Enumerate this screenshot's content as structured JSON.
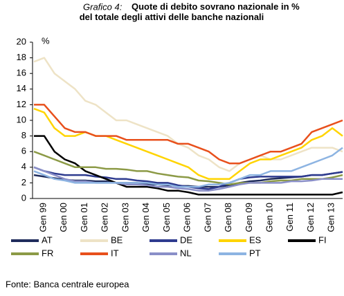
{
  "chart_data": {
    "type": "line",
    "title_label": "Grafico 4:",
    "title": "Quote di debito sovrano nazionale in %  del totale degli attivi delle banche nazionali",
    "ylabel": "%",
    "source": "Fonte: Banca centrale europea",
    "categories": [
      "Gen 99",
      null,
      "Gen 00",
      null,
      "Gen 01",
      null,
      "Gen 02",
      null,
      "Gen 03",
      null,
      "Gen 04",
      null,
      "Gen 05",
      null,
      "Gen 06",
      null,
      "Gen 07",
      null,
      "Gen 08",
      null,
      "Gen 09",
      null,
      "Gen 10",
      null,
      "Gen 11",
      null,
      "Gen 12",
      null,
      "Gen 13",
      null,
      null
    ],
    "ylim": [
      0,
      20
    ],
    "yticks": [
      0,
      2,
      4,
      6,
      8,
      10,
      12,
      14,
      16,
      18,
      20
    ],
    "grid": false,
    "series": [
      {
        "name": "AT",
        "color": "#1f2c5c",
        "values": [
          3,
          2.8,
          2.6,
          2.4,
          2.3,
          2.3,
          2.2,
          2.2,
          2,
          2,
          2,
          1.8,
          1.8,
          1.7,
          1.6,
          1.6,
          1.5,
          1.5,
          1.5,
          1.7,
          2,
          2.2,
          2.3,
          2.5,
          2.6,
          2.7,
          2.8,
          3,
          3,
          3.2,
          3.4
        ]
      },
      {
        "name": "BE",
        "color": "#eee3c6",
        "values": [
          17.5,
          18,
          16,
          15,
          14,
          12.5,
          12,
          11,
          10,
          10,
          9.5,
          9,
          8.5,
          8,
          7,
          6.5,
          5.5,
          5,
          4,
          3.5,
          4.5,
          5,
          5.5,
          5,
          5,
          5.5,
          6,
          6.5,
          6.5,
          6.5,
          6
        ]
      },
      {
        "name": "DE",
        "color": "#2e3b8f",
        "values": [
          4,
          3.5,
          3.2,
          3,
          3,
          3,
          2.8,
          2.7,
          2.5,
          2.5,
          2.3,
          2.2,
          2,
          2,
          1.7,
          1.5,
          1.3,
          1.2,
          1.5,
          2,
          2.5,
          2.7,
          2.8,
          2.8,
          2.8,
          2.8,
          2.8,
          3,
          3,
          3.2,
          3.4
        ]
      },
      {
        "name": "ES",
        "color": "#ffd400",
        "values": [
          11.5,
          11,
          9,
          8,
          8,
          8.5,
          8,
          8,
          7.5,
          7,
          6.5,
          6,
          5.5,
          5,
          4.5,
          4,
          3,
          2.5,
          2.5,
          2.5,
          3.5,
          4.5,
          5,
          5,
          5.5,
          6,
          6.5,
          7.5,
          8,
          9,
          8
        ]
      },
      {
        "name": "FI",
        "color": "#000000",
        "values": [
          8,
          8,
          6,
          5,
          4.5,
          3.5,
          3,
          2.5,
          2,
          1.5,
          1.5,
          1.5,
          1.3,
          1,
          1,
          0.8,
          0.5,
          0.5,
          0.5,
          0.5,
          0.5,
          0.5,
          0.5,
          0.5,
          0.5,
          0.5,
          0.5,
          0.5,
          0.5,
          0.5,
          0.8
        ]
      },
      {
        "name": "FR",
        "color": "#8c9a46",
        "values": [
          6,
          5.5,
          5,
          4.5,
          4,
          4,
          4,
          3.8,
          3.8,
          3.7,
          3.5,
          3.5,
          3.2,
          3,
          2.8,
          2.7,
          2.3,
          2.2,
          2,
          1.8,
          2,
          2,
          2,
          2.2,
          2.3,
          2.3,
          2.5,
          2.5,
          2.5,
          2.7,
          3
        ]
      },
      {
        "name": "IT",
        "color": "#e8501c",
        "values": [
          12,
          12,
          10.5,
          9,
          8.5,
          8.5,
          8,
          8,
          8,
          7.5,
          7.5,
          7.5,
          7.5,
          7.5,
          7,
          7,
          6.5,
          6,
          5,
          4.5,
          4.5,
          5,
          5.5,
          6,
          6,
          6.5,
          7,
          8.5,
          9,
          9.5,
          10
        ]
      },
      {
        "name": "NL",
        "color": "#8a8fc8",
        "values": [
          4,
          3.5,
          3,
          2.5,
          2.2,
          2.2,
          2,
          2,
          2,
          1.8,
          1.8,
          1.7,
          1.5,
          1.5,
          1.3,
          1.2,
          1,
          1,
          1.2,
          1.5,
          1.8,
          2,
          2,
          2,
          2,
          2.2,
          2.2,
          2.3,
          2.5,
          2.5,
          2.5
        ]
      },
      {
        "name": "PT",
        "color": "#8db4e2",
        "values": [
          3.5,
          3,
          2.5,
          2.3,
          2,
          2,
          2,
          2,
          2,
          2,
          2,
          2,
          1.8,
          1.8,
          1.5,
          1.5,
          1.5,
          1.8,
          1.8,
          2,
          2.5,
          3,
          3,
          3.5,
          3.5,
          3.5,
          4,
          4.5,
          5,
          5.5,
          6.5
        ]
      }
    ]
  }
}
